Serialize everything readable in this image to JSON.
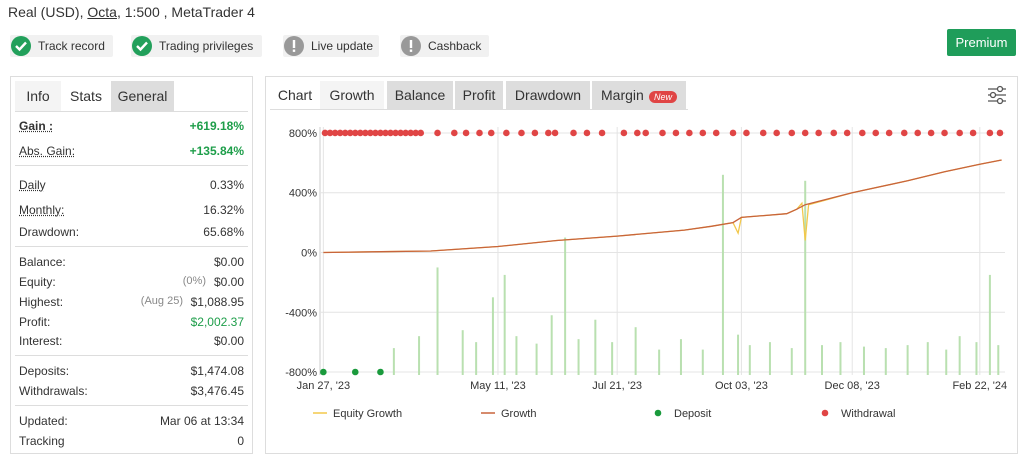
{
  "header": {
    "account": "Real (USD),",
    "broker": "Octa",
    "details": ", 1:500 , MetaTrader 4"
  },
  "badges": [
    "Track record",
    "Trading privileges",
    "Live update",
    "Cashback"
  ],
  "premium": "Premium",
  "left_tabs": [
    "Info",
    "Stats",
    "General"
  ],
  "stats": [
    [
      {
        "label": "Gain :",
        "value": "+619.18%"
      },
      {
        "label": "Abs. Gain:",
        "value": "+135.84%"
      }
    ],
    [
      {
        "label": "Daily",
        "value": "0.33%"
      },
      {
        "label": "Monthly:",
        "value": "16.32%"
      },
      {
        "label": "Drawdown:",
        "value": "65.68%"
      }
    ],
    [
      {
        "label": "Balance:",
        "value": "$0.00"
      },
      {
        "label": "Equity:",
        "note": "(0%)",
        "value": "$0.00"
      },
      {
        "label": "Highest:",
        "note": "(Aug 25)",
        "value": "$1,088.95"
      },
      {
        "label": "Profit:",
        "value": "$2,002.37"
      },
      {
        "label": "Interest:",
        "value": "$0.00"
      }
    ],
    [
      {
        "label": "Deposits:",
        "value": "$1,474.08"
      },
      {
        "label": "Withdrawals:",
        "value": "$3,476.45"
      }
    ],
    [
      {
        "label": "Updated:",
        "value": "Mar 06 at 13:34"
      },
      {
        "label": "Tracking",
        "value": "0"
      }
    ]
  ],
  "chart_tabs": [
    "Chart",
    "Growth",
    "Balance",
    "Profit",
    "Drawdown",
    "Margin"
  ],
  "new_tag": "New",
  "chart_data": {
    "type": "line",
    "xlim": [
      "2023-01-25",
      "2024-03-08"
    ],
    "xticks": [
      {
        "value": "2023-01-27",
        "label": "Jan 27, '23"
      },
      {
        "value": "2023-05-11",
        "label": "May 11, '23"
      },
      {
        "value": "2023-07-21",
        "label": "Jul 21, '23"
      },
      {
        "value": "2023-10-03",
        "label": "Oct 03, '23"
      },
      {
        "value": "2023-12-08",
        "label": "Dec 08, '23"
      },
      {
        "value": "2024-02-22",
        "label": "Feb 22, '24"
      }
    ],
    "ylim": [
      -820,
      840
    ],
    "yticks": [
      {
        "value": -800,
        "label": "-800%"
      },
      {
        "value": -400,
        "label": "-400%"
      },
      {
        "value": 0,
        "label": "0%"
      },
      {
        "value": 400,
        "label": "400%"
      },
      {
        "value": 800,
        "label": "800%"
      }
    ],
    "grid": true,
    "series": [
      {
        "name": "Equity Growth",
        "color": "#f2c84b",
        "x": [
          "2023-01-27",
          "2023-04-01",
          "2023-05-11",
          "2023-06-15",
          "2023-07-21",
          "2023-08-30",
          "2023-09-15",
          "2023-09-28",
          "2023-10-01",
          "2023-10-03",
          "2023-10-30",
          "2023-11-05",
          "2023-11-08",
          "2023-11-10",
          "2023-11-12",
          "2023-12-08",
          "2024-01-10",
          "2024-02-01",
          "2024-02-22",
          "2024-03-06"
        ],
        "values": [
          0,
          10,
          40,
          80,
          110,
          150,
          175,
          200,
          130,
          235,
          260,
          290,
          330,
          80,
          320,
          400,
          480,
          540,
          590,
          619.18
        ]
      },
      {
        "name": "Growth",
        "color": "#c8643c",
        "x": [
          "2023-01-27",
          "2023-04-01",
          "2023-05-11",
          "2023-06-15",
          "2023-07-21",
          "2023-08-30",
          "2023-09-15",
          "2023-09-28",
          "2023-10-03",
          "2023-10-30",
          "2023-11-05",
          "2023-11-10",
          "2023-12-08",
          "2024-01-10",
          "2024-02-01",
          "2024-02-22",
          "2024-03-06"
        ],
        "values": [
          0,
          10,
          40,
          80,
          110,
          150,
          175,
          200,
          235,
          260,
          290,
          320,
          400,
          480,
          540,
          590,
          619.18
        ]
      },
      {
        "name": "Deposit",
        "color": "#1a9a3c",
        "x": [
          "2023-01-27",
          "2023-02-15",
          "2023-03-02"
        ],
        "values": [
          -800,
          -800,
          -800
        ]
      },
      {
        "name": "Withdrawal",
        "color": "#e04545",
        "x": [
          "2023-01-28",
          "2023-01-31",
          "2023-02-03",
          "2023-02-06",
          "2023-02-09",
          "2023-02-12",
          "2023-02-15",
          "2023-02-18",
          "2023-02-21",
          "2023-02-24",
          "2023-02-27",
          "2023-03-02",
          "2023-03-05",
          "2023-03-08",
          "2023-03-11",
          "2023-03-14",
          "2023-03-17",
          "2023-03-20",
          "2023-03-23",
          "2023-03-26",
          "2023-04-05",
          "2023-04-15",
          "2023-04-22",
          "2023-04-30",
          "2023-05-07",
          "2023-05-16",
          "2023-05-25",
          "2023-06-02",
          "2023-06-10",
          "2023-06-14",
          "2023-06-25",
          "2023-07-03",
          "2023-07-12",
          "2023-07-25",
          "2023-08-02",
          "2023-08-07",
          "2023-08-17",
          "2023-08-25",
          "2023-09-02",
          "2023-09-10",
          "2023-09-18",
          "2023-09-28",
          "2023-10-06",
          "2023-10-16",
          "2023-10-24",
          "2023-11-02",
          "2023-11-10",
          "2023-11-18",
          "2023-11-27",
          "2023-12-05",
          "2023-12-14",
          "2023-12-22",
          "2023-12-30",
          "2024-01-08",
          "2024-01-16",
          "2024-01-24",
          "2024-02-01",
          "2024-02-10",
          "2024-02-18",
          "2024-02-28",
          "2024-03-05"
        ],
        "values": [
          800,
          800,
          800,
          800,
          800,
          800,
          800,
          800,
          800,
          800,
          800,
          800,
          800,
          800,
          800,
          800,
          800,
          800,
          800,
          800,
          800,
          800,
          800,
          800,
          800,
          800,
          800,
          800,
          800,
          800,
          800,
          800,
          800,
          800,
          800,
          800,
          800,
          800,
          800,
          800,
          800,
          800,
          800,
          800,
          800,
          800,
          800,
          800,
          800,
          800,
          800,
          800,
          800,
          800,
          800,
          800,
          800,
          800,
          800,
          800,
          800
        ]
      }
    ],
    "bars": {
      "color": "#b9e0b0",
      "x": [
        "2023-03-10",
        "2023-03-25",
        "2023-04-05",
        "2023-04-20",
        "2023-04-28",
        "2023-05-08",
        "2023-05-15",
        "2023-05-22",
        "2023-06-03",
        "2023-06-12",
        "2023-06-20",
        "2023-06-28",
        "2023-07-08",
        "2023-07-18",
        "2023-08-01",
        "2023-08-15",
        "2023-08-28",
        "2023-09-10",
        "2023-09-22",
        "2023-10-01",
        "2023-10-08",
        "2023-10-20",
        "2023-11-02",
        "2023-11-10",
        "2023-11-20",
        "2023-12-01",
        "2023-12-15",
        "2023-12-28",
        "2024-01-10",
        "2024-01-22",
        "2024-02-02",
        "2024-02-10",
        "2024-02-20",
        "2024-02-28",
        "2024-03-04"
      ],
      "values": [
        -640,
        -560,
        -100,
        -520,
        -600,
        -300,
        -150,
        -560,
        -610,
        -420,
        100,
        -580,
        -450,
        -600,
        -500,
        -650,
        -580,
        -650,
        520,
        -550,
        -620,
        -600,
        -640,
        480,
        -620,
        -600,
        -630,
        -640,
        -620,
        -600,
        -650,
        -560,
        -600,
        -150,
        -620
      ]
    }
  }
}
